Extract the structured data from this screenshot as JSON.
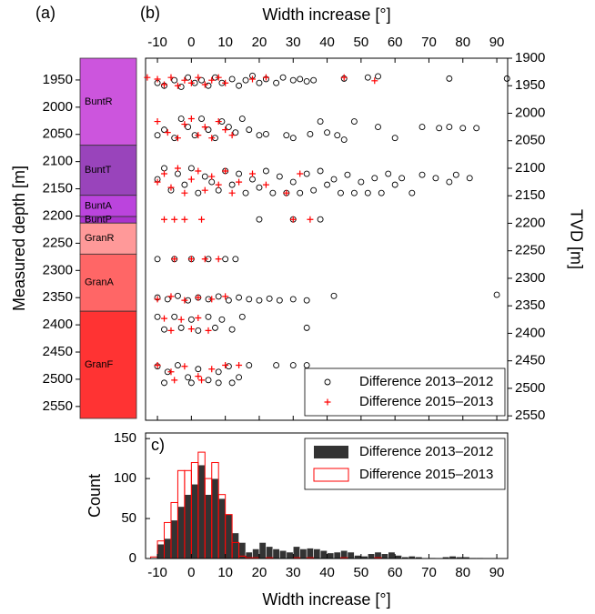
{
  "chart_data": [
    {
      "type": "strat-column",
      "panel_label": "(a)",
      "y_label": "Measured depth [m]",
      "ylim": [
        1910,
        2572
      ],
      "y_inverted": true,
      "yticks": [
        1950,
        2000,
        2050,
        2100,
        2150,
        2200,
        2250,
        2300,
        2350,
        2400,
        2450,
        2500,
        2550
      ],
      "units": [
        {
          "name": "BuntR",
          "top": 1910,
          "bottom": 2070,
          "color": "#cc55dd"
        },
        {
          "name": "BuntT",
          "top": 2070,
          "bottom": 2162,
          "color": "#9944bb"
        },
        {
          "name": "BuntA",
          "top": 2162,
          "bottom": 2201,
          "color": "#bb44dd"
        },
        {
          "name": "BuntP",
          "top": 2201,
          "bottom": 2213,
          "color": "#aa33cc"
        },
        {
          "name": "GranR",
          "top": 2213,
          "bottom": 2270,
          "color": "#ff9999"
        },
        {
          "name": "GranA",
          "top": 2270,
          "bottom": 2375,
          "color": "#ff6666"
        },
        {
          "name": "GranF",
          "top": 2375,
          "bottom": 2572,
          "color": "#ff3333"
        }
      ]
    },
    {
      "type": "scatter",
      "panel_label": "(b)",
      "x_label": "Width increase [°]",
      "y_label": "TVD [m]",
      "xlim": [
        -13.5,
        93.2
      ],
      "xticks": [
        -10,
        0,
        10,
        20,
        30,
        40,
        50,
        60,
        70,
        80,
        90
      ],
      "ylim": [
        1900,
        2558
      ],
      "y_inverted": true,
      "yticks": [
        1900,
        1950,
        2000,
        2050,
        2100,
        2150,
        2200,
        2250,
        2300,
        2350,
        2400,
        2450,
        2500,
        2550
      ],
      "legend": "lower right",
      "series": [
        {
          "name": "Difference 2013–2012",
          "color": "#000000",
          "marker": "circle",
          "x": [
            -10,
            -8,
            -5,
            -3,
            -1,
            1,
            3,
            5,
            7,
            9,
            12,
            14,
            16,
            18,
            20,
            22,
            25,
            27,
            30,
            32,
            34,
            36,
            45,
            52,
            55,
            76,
            93,
            -10,
            -8,
            -5,
            -3,
            -1,
            1,
            3,
            5,
            7,
            9,
            11,
            13,
            15,
            17,
            20,
            22,
            28,
            30,
            35,
            38,
            40,
            43,
            45,
            48,
            55,
            60,
            68,
            73,
            76,
            80,
            84,
            -10,
            -8,
            -6,
            -4,
            -2,
            0,
            2,
            4,
            6,
            8,
            10,
            12,
            14,
            16,
            18,
            20,
            22,
            24,
            26,
            28,
            30,
            32,
            34,
            36,
            38,
            40,
            42,
            44,
            46,
            48,
            50,
            52,
            54,
            56,
            58,
            60,
            62,
            65,
            68,
            72,
            76,
            78,
            82,
            20,
            30,
            38,
            -10,
            -5,
            0,
            5,
            10,
            13,
            -10,
            -7,
            -4,
            -1,
            2,
            5,
            8,
            11,
            14,
            17,
            20,
            23,
            26,
            30,
            34,
            42,
            90,
            -10,
            -5,
            0,
            5,
            9,
            15,
            -8,
            -3,
            2,
            7,
            12,
            34,
            -10,
            -7,
            -4,
            -1,
            2,
            5,
            8,
            11,
            14,
            17,
            25,
            30,
            34,
            -8,
            0,
            8,
            12
          ],
          "values": [
            1945,
            1950,
            1940,
            1952,
            1935,
            1945,
            1940,
            1950,
            1935,
            1945,
            1938,
            1950,
            1940,
            1932,
            1945,
            1938,
            1945,
            1935,
            1940,
            1938,
            1942,
            1940,
            1937,
            1935,
            1933,
            1937,
            1937,
            2040,
            2030,
            2045,
            2010,
            2025,
            2040,
            2010,
            2030,
            2045,
            2015,
            2025,
            2035,
            2010,
            2030,
            2040,
            2038,
            2040,
            2045,
            2038,
            2015,
            2035,
            2040,
            2048,
            2015,
            2025,
            2045,
            2025,
            2027,
            2025,
            2027,
            2027,
            2120,
            2100,
            2140,
            2110,
            2130,
            2100,
            2145,
            2115,
            2125,
            2140,
            2105,
            2130,
            2110,
            2145,
            2120,
            2135,
            2105,
            2145,
            2115,
            2145,
            2125,
            2145,
            2110,
            2140,
            2105,
            2130,
            2120,
            2145,
            2112,
            2145,
            2125,
            2145,
            2118,
            2145,
            2110,
            2130,
            2118,
            2145,
            2112,
            2118,
            2125,
            2112,
            2118,
            2193,
            2193,
            2193,
            2265,
            2265,
            2265,
            2265,
            2265,
            2265,
            2335,
            2338,
            2332,
            2340,
            2335,
            2338,
            2333,
            2340,
            2335,
            2338,
            2340,
            2337,
            2340,
            2338,
            2340,
            2332,
            2330,
            2370,
            2370,
            2375,
            2370,
            2375,
            2370,
            2393,
            2390,
            2395,
            2390,
            2393,
            2390,
            2460,
            2470,
            2458,
            2480,
            2465,
            2485,
            2470,
            2460,
            2480,
            2458,
            2458,
            2458,
            2458,
            2490,
            2490,
            2490,
            2490
          ]
        },
        {
          "name": "Difference 2015–2013",
          "color": "#ff0000",
          "marker": "plus",
          "x": [
            -13,
            -10,
            -8,
            -6,
            -4,
            -2,
            0,
            2,
            4,
            6,
            8,
            10,
            18,
            22,
            45,
            54,
            -10,
            -7,
            -4,
            -2,
            0,
            2,
            4,
            6,
            8,
            10,
            12,
            -10,
            -8,
            -6,
            -4,
            -2,
            0,
            2,
            4,
            6,
            8,
            10,
            12,
            14,
            18,
            22,
            28,
            32,
            -8,
            -5,
            -2,
            3,
            30,
            35,
            -5,
            0,
            4,
            8,
            -10,
            -6,
            -2,
            2,
            6,
            10,
            -8,
            -3,
            2,
            -6,
            0,
            5,
            -10,
            -6,
            -2,
            2,
            6,
            10,
            14,
            -5,
            3
          ],
          "values": [
            1935,
            1938,
            1948,
            1935,
            1950,
            1940,
            1945,
            1935,
            1948,
            1940,
            1935,
            1945,
            1938,
            1935,
            1935,
            1941,
            2015,
            2035,
            2045,
            2020,
            2010,
            2040,
            2025,
            2045,
            2015,
            2030,
            2040,
            2125,
            2110,
            2135,
            2100,
            2145,
            2120,
            2105,
            2140,
            2115,
            2130,
            2105,
            2145,
            2125,
            2110,
            2130,
            2145,
            2110,
            2193,
            2193,
            2193,
            2193,
            2193,
            2193,
            2265,
            2265,
            2265,
            2265,
            2338,
            2333,
            2340,
            2335,
            2338,
            2333,
            2373,
            2375,
            2372,
            2395,
            2392,
            2395,
            2458,
            2470,
            2460,
            2478,
            2465,
            2458,
            2458,
            2485,
            2485
          ]
        }
      ]
    },
    {
      "type": "histogram",
      "panel_label": "c)",
      "x_label": "Width increase [°]",
      "y_label": "Count",
      "xlim": [
        -13.5,
        93.2
      ],
      "xticks": [
        -10,
        0,
        10,
        20,
        30,
        40,
        50,
        60,
        70,
        80,
        90
      ],
      "ylim": [
        0,
        157
      ],
      "yticks": [
        0,
        50,
        100,
        150
      ],
      "legend": "upper right",
      "bins": [
        -12,
        -10,
        -8,
        -6,
        -4,
        -2,
        0,
        2,
        4,
        6,
        8,
        10,
        12,
        14,
        16,
        18,
        20,
        22,
        24,
        26,
        28,
        30,
        32,
        34,
        36,
        38,
        40,
        42,
        44,
        46,
        48,
        50,
        52,
        54,
        56,
        58,
        60,
        62,
        64,
        66,
        68,
        70,
        72,
        74,
        76,
        78,
        80,
        82,
        84,
        86,
        88,
        90,
        92,
        94
      ],
      "series": [
        {
          "name": "Difference 2013–2012",
          "color": "#333333",
          "style": "filled",
          "values": [
            0,
            18,
            25,
            48,
            65,
            80,
            93,
            117,
            80,
            100,
            75,
            55,
            32,
            20,
            8,
            12,
            20,
            15,
            12,
            10,
            8,
            15,
            12,
            13,
            12,
            10,
            7,
            8,
            10,
            8,
            4,
            3,
            6,
            8,
            6,
            8,
            4,
            2,
            3,
            2,
            0,
            1,
            0,
            2,
            3,
            2,
            2,
            1,
            1,
            0,
            0,
            0,
            0
          ]
        },
        {
          "name": "Difference 2015–2013",
          "color": "#ff0000",
          "style": "outline",
          "values": [
            2,
            22,
            45,
            70,
            110,
            110,
            120,
            133,
            100,
            120,
            80,
            55,
            20,
            3,
            1,
            1,
            0,
            1,
            0,
            0,
            0,
            1,
            0,
            1,
            0,
            0,
            0,
            0,
            1,
            0,
            0,
            0,
            0,
            1,
            0,
            0,
            0,
            0,
            0,
            0,
            0,
            0,
            0,
            0,
            0,
            0,
            0,
            0,
            0,
            0,
            0,
            0,
            0
          ]
        }
      ]
    }
  ]
}
